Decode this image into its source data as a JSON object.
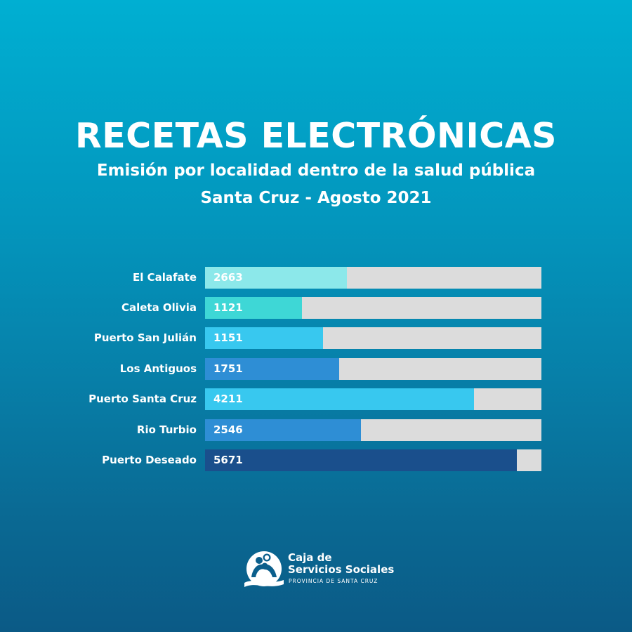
{
  "header": {
    "title": "RECETAS ELECTRÓNICAS",
    "subtitle": "Emisión por localidad dentro de la salud pública",
    "subtitle2": "Santa Cruz - Agosto 2021"
  },
  "chart_data": {
    "type": "bar",
    "orientation": "horizontal",
    "title": "RECETAS ELECTRÓNICAS",
    "subtitle": "Emisión por localidad dentro de la salud pública — Santa Cruz - Agosto 2021",
    "xlabel": "",
    "ylabel": "",
    "grid": false,
    "legend": null,
    "categories": [
      "El Calafate",
      "Caleta Olivia",
      "Puerto San Julián",
      "Los Antiguos",
      "Puerto Santa Cruz",
      "Rio Turbio",
      "Puerto Deseado"
    ],
    "values": [
      2663,
      1121,
      1151,
      1751,
      4211,
      2546,
      5671
    ],
    "value_labels": [
      "2663",
      "1121",
      "1151",
      "1751",
      "4211",
      "2546",
      "5671"
    ],
    "bar_fill_percent": [
      42.2,
      28.8,
      35.1,
      39.9,
      80.0,
      46.3,
      92.7
    ],
    "bar_colors": [
      "#8ce8ea",
      "#3ed7d6",
      "#38c8ef",
      "#2e8ed5",
      "#38c8ef",
      "#2e8ed5",
      "#1a4f8c"
    ],
    "track_color": "#dcdcdc"
  },
  "footer": {
    "logo_line1": "Caja de",
    "logo_line2": "Servicios Sociales",
    "logo_line3": "PROVINCIA DE SANTA CRUZ"
  }
}
